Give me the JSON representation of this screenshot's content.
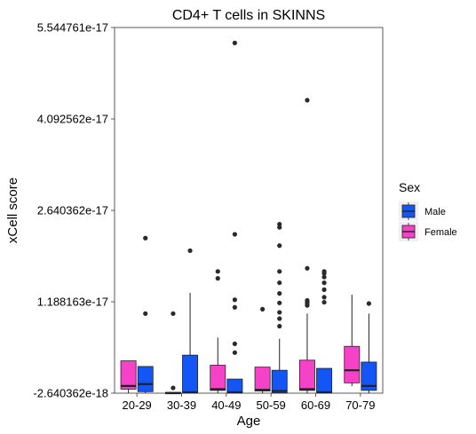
{
  "chart_data": {
    "type": "boxplot",
    "title": "CD4+ T cells in SKINNS",
    "xlabel": "Age",
    "ylabel": "xCell score",
    "ylim": [
      -2.640362e-18,
      5.544761e-17
    ],
    "yticks": [
      {
        "value": -2.640362e-18,
        "label": "-2.640362e-18"
      },
      {
        "value": 1.188163e-17,
        "label": "1.188163e-17"
      },
      {
        "value": 2.640362e-17,
        "label": "2.640362e-17"
      },
      {
        "value": 4.092562e-17,
        "label": "4.092562e-17"
      },
      {
        "value": 5.544761e-17,
        "label": "5.544761e-17"
      }
    ],
    "categories": [
      "20-29",
      "30-39",
      "40-49",
      "50-59",
      "60-69",
      "70-79"
    ],
    "legend": {
      "title": "Sex",
      "position": "right",
      "entries": [
        {
          "name": "Male",
          "color": "#1455f5"
        },
        {
          "name": "Female",
          "color": "#f542c8"
        }
      ]
    },
    "grid": false,
    "series": [
      {
        "name": "Female",
        "color": "#f542c8",
        "boxes": [
          {
            "category": "20-29",
            "min": -2.64e-18,
            "q1": -2e-18,
            "median": -1.5e-18,
            "q3": 2.5e-18,
            "max": 2.5e-18,
            "outliers": []
          },
          {
            "category": "30-39",
            "min": -2.64e-18,
            "q1": -2.64e-18,
            "median": -2.64e-18,
            "q3": -2.5e-18,
            "max": -2.5e-18,
            "outliers": [
              -1.8e-18,
              1e-17
            ]
          },
          {
            "category": "40-49",
            "min": -2.64e-18,
            "q1": -2.2e-18,
            "median": -2e-18,
            "q3": 1.8e-18,
            "max": 6.2e-18,
            "outliers": [
              1.56e-17,
              1.67e-17
            ]
          },
          {
            "category": "50-59",
            "min": -2.64e-18,
            "q1": -2.3e-18,
            "median": -2.1e-18,
            "q3": 1.5e-18,
            "max": 1.5e-18,
            "outliers": [
              1.07e-17
            ]
          },
          {
            "category": "60-69",
            "min": -2.64e-18,
            "q1": -2.2e-18,
            "median": -2e-18,
            "q3": 2.6e-18,
            "max": 1e-17,
            "outliers": [
              1.13e-17,
              1.16e-17,
              1.19e-17,
              1.21e-17,
              1.72e-17,
              4.39e-17
            ]
          },
          {
            "category": "70-79",
            "min": -1.5e-18,
            "q1": -1e-18,
            "median": 1e-18,
            "q3": 4.8e-18,
            "max": 1.3e-17,
            "outliers": []
          }
        ]
      },
      {
        "name": "Male",
        "color": "#1455f5",
        "boxes": [
          {
            "category": "20-29",
            "min": -2.64e-18,
            "q1": -2.4e-18,
            "median": -1.2e-18,
            "q3": 1.6e-18,
            "max": 1.6e-18,
            "outliers": [
              1e-17,
              2.2e-17
            ]
          },
          {
            "category": "30-39",
            "min": -2.64e-18,
            "q1": -2.6e-18,
            "median": -2.5e-18,
            "q3": 3.4e-18,
            "max": 1.33e-17,
            "outliers": [
              2e-17
            ]
          },
          {
            "category": "40-49",
            "min": -2.64e-18,
            "q1": -2.6e-18,
            "median": -2.5e-18,
            "q3": -4e-19,
            "max": -4e-19,
            "outliers": [
              3.8e-18,
              5.2e-18,
              1.1e-17,
              1.22e-17,
              2.26e-17,
              5.3e-17
            ]
          },
          {
            "category": "50-59",
            "min": -2.64e-18,
            "q1": -2.6e-18,
            "median": -2.3e-18,
            "q3": 1e-18,
            "max": 6e-18,
            "outliers": [
              8e-18,
              9.2e-18,
              1.02e-17,
              1.17e-17,
              1.32e-17,
              1.49e-17,
              1.67e-17,
              2.08e-17,
              2.37e-17,
              2.42e-17
            ]
          },
          {
            "category": "60-69",
            "min": -2.64e-18,
            "q1": -2.6e-18,
            "median": -2.5e-18,
            "q3": 1.3e-18,
            "max": 1.3e-18,
            "outliers": [
              1.18e-17,
              1.26e-17,
              1.38e-17,
              1.49e-17,
              1.58e-17,
              1.64e-17,
              1.67e-17
            ]
          },
          {
            "category": "70-79",
            "min": -2.64e-18,
            "q1": -2.2e-18,
            "median": -1.5e-18,
            "q3": 2.3e-18,
            "max": 1e-17,
            "outliers": [
              1.16e-17
            ]
          }
        ]
      }
    ]
  }
}
